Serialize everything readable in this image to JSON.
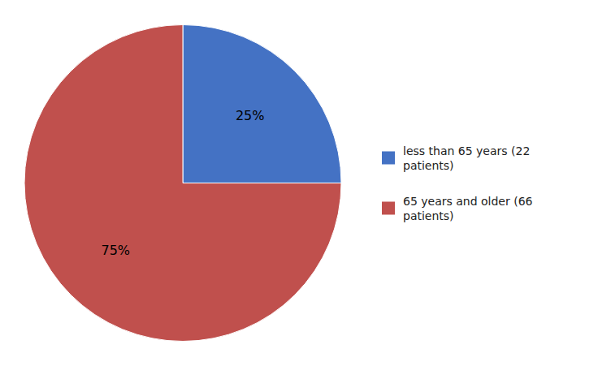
{
  "chart_data": {
    "type": "pie",
    "categories": [
      "less than 65 years (22\npatients)",
      "65 years and older (66\npatients)"
    ],
    "values": [
      25,
      75
    ],
    "value_labels": [
      "25%",
      "75%"
    ],
    "colors": [
      "#4472C4",
      "#C0504D"
    ],
    "data_labels": true,
    "legend": "right"
  }
}
